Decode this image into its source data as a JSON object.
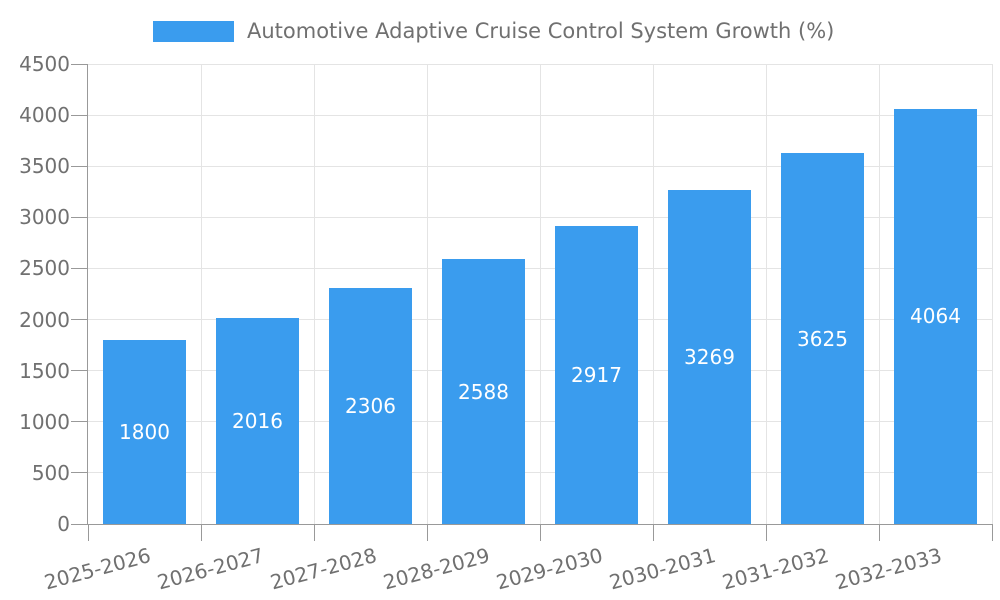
{
  "chart_data": {
    "type": "bar",
    "title": "Automotive Adaptive Cruise Control System Growth (%)",
    "categories": [
      "2025-2026",
      "2026-2027",
      "2027-2028",
      "2028-2029",
      "2029-2030",
      "2030-2031",
      "2031-2032",
      "2032-2033"
    ],
    "values": [
      1800,
      2016,
      2306,
      2588,
      2917,
      3269,
      3625,
      4064
    ],
    "xlabel": "",
    "ylabel": "",
    "ylim": [
      0,
      4500
    ],
    "ytick_step": 500,
    "grid": true,
    "legend_position": "top",
    "x_label_rotation_deg": -15,
    "bar_color": "#3A9CEE",
    "value_label_color": "#FFFFFF",
    "grid_color": "#E4E4E4",
    "axis_color": "#999999",
    "text_color": "#707070",
    "background_color": "#FFFFFF"
  }
}
